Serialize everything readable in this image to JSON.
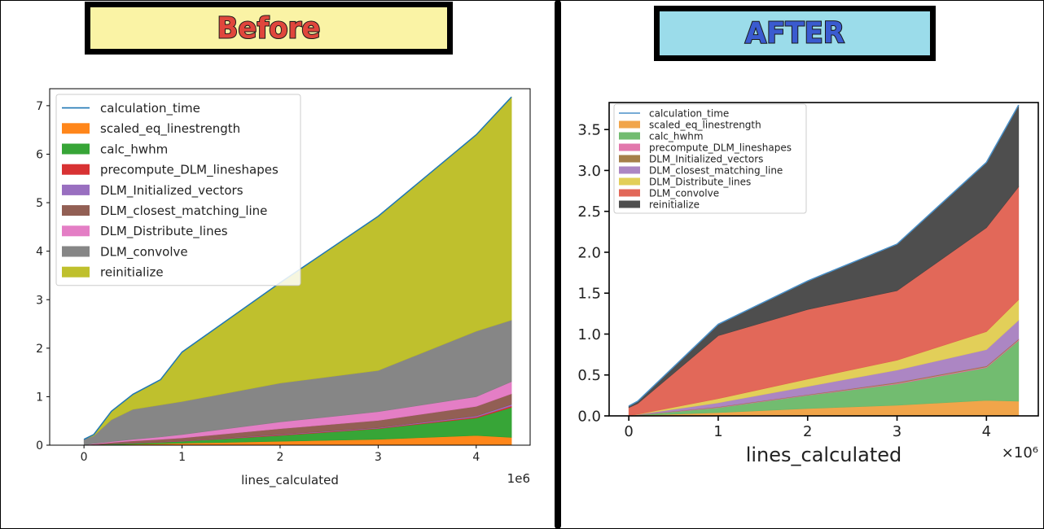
{
  "banners": {
    "before": "Before",
    "after": "AFTER"
  },
  "chart_data": [
    {
      "type": "area",
      "stacked": true,
      "panel": "before",
      "title": "",
      "xlabel": "lines_calculated",
      "x_offset_label": "1e6",
      "ylabel": "",
      "xlim": [
        -0.35,
        4.55
      ],
      "ylim": [
        0,
        7.35
      ],
      "xticks": [
        0,
        1,
        2,
        3,
        4
      ],
      "yticks": [
        0,
        1,
        2,
        3,
        4,
        5,
        6,
        7
      ],
      "grid": false,
      "legend": "top-left",
      "x": [
        0,
        0.1,
        0.28,
        0.5,
        0.78,
        1.0,
        2.0,
        3.0,
        4.0,
        4.36
      ],
      "line": {
        "name": "calculation_time",
        "color": "#1f77b4",
        "values": [
          0.12,
          0.22,
          0.7,
          1.05,
          1.35,
          1.92,
          3.35,
          4.72,
          6.4,
          7.18
        ]
      },
      "series": [
        {
          "name": "scaled_eq_linestrength",
          "color": "#ff7f0e",
          "values": [
            0.0,
            0.005,
            0.01,
            0.02,
            0.03,
            0.04,
            0.08,
            0.12,
            0.2,
            0.16
          ]
        },
        {
          "name": "calc_hwhm",
          "color": "#2ca02c",
          "values": [
            0.0,
            0.005,
            0.015,
            0.02,
            0.03,
            0.04,
            0.12,
            0.22,
            0.36,
            0.62
          ]
        },
        {
          "name": "precompute_DLM_lineshapes",
          "color": "#d62728",
          "values": [
            0.0,
            0.002,
            0.005,
            0.005,
            0.005,
            0.005,
            0.01,
            0.01,
            0.02,
            0.03
          ]
        },
        {
          "name": "DLM_Initialized_vectors",
          "color": "#9467bd",
          "values": [
            0.0,
            0.002,
            0.005,
            0.005,
            0.005,
            0.005,
            0.01,
            0.01,
            0.02,
            0.03
          ]
        },
        {
          "name": "DLM_closest_matching_line",
          "color": "#8c564b",
          "values": [
            0.0,
            0.01,
            0.02,
            0.04,
            0.05,
            0.06,
            0.12,
            0.15,
            0.2,
            0.22
          ]
        },
        {
          "name": "DLM_Distribute_lines",
          "color": "#e377c2",
          "values": [
            0.0,
            0.01,
            0.02,
            0.03,
            0.05,
            0.07,
            0.14,
            0.18,
            0.2,
            0.25
          ]
        },
        {
          "name": "DLM_convolve",
          "color": "#7f7f7f",
          "values": [
            0.12,
            0.16,
            0.45,
            0.62,
            0.66,
            0.68,
            0.8,
            0.85,
            1.35,
            1.27
          ]
        },
        {
          "name": "reinitialize",
          "color": "#bcbd22",
          "values": [
            0.0,
            0.028,
            0.18,
            0.31,
            0.5,
            1.02,
            2.07,
            3.18,
            4.05,
            4.6
          ]
        }
      ]
    },
    {
      "type": "area",
      "stacked": true,
      "panel": "after",
      "title": "",
      "xlabel": "lines_calculated",
      "x_offset_label": "×10⁶",
      "ylabel": "",
      "xlim": [
        -0.22,
        4.58
      ],
      "ylim": [
        0,
        3.83
      ],
      "xticks": [
        0,
        1,
        2,
        3,
        4
      ],
      "yticks": [
        0.0,
        0.5,
        1.0,
        1.5,
        2.0,
        2.5,
        3.0,
        3.5
      ],
      "ytick_labels": [
        "0.0",
        "0.5",
        "1.0",
        "1.5",
        "2.0",
        "2.5",
        "3.0",
        "3.5"
      ],
      "grid": false,
      "legend": "top-left",
      "x": [
        0,
        0.1,
        1.0,
        2.0,
        3.0,
        4.0,
        4.36
      ],
      "line": {
        "name": "calculation_time",
        "color": "#4a90c8",
        "values": [
          0.12,
          0.18,
          1.12,
          1.65,
          2.1,
          3.1,
          3.8
        ]
      },
      "series": [
        {
          "name": "scaled_eq_linestrength",
          "color": "#f0a040",
          "values": [
            0.0,
            0.005,
            0.04,
            0.09,
            0.13,
            0.19,
            0.18
          ]
        },
        {
          "name": "calc_hwhm",
          "color": "#6ab868",
          "values": [
            0.0,
            0.005,
            0.06,
            0.16,
            0.26,
            0.4,
            0.74
          ]
        },
        {
          "name": "precompute_DLM_lineshapes",
          "color": "#e070a8",
          "values": [
            0.0,
            0.002,
            0.005,
            0.005,
            0.01,
            0.01,
            0.01
          ]
        },
        {
          "name": "DLM_Initialized_vectors",
          "color": "#a07840",
          "values": [
            0.0,
            0.002,
            0.005,
            0.005,
            0.01,
            0.01,
            0.01
          ]
        },
        {
          "name": "DLM_closest_matching_line",
          "color": "#a880c0",
          "values": [
            0.0,
            0.003,
            0.05,
            0.1,
            0.15,
            0.2,
            0.23
          ]
        },
        {
          "name": "DLM_Distribute_lines",
          "color": "#e0cc50",
          "values": [
            0.0,
            0.003,
            0.05,
            0.09,
            0.12,
            0.22,
            0.25
          ]
        },
        {
          "name": "DLM_convolve",
          "color": "#e06050",
          "values": [
            0.1,
            0.13,
            0.77,
            0.85,
            0.85,
            1.27,
            1.38
          ]
        },
        {
          "name": "reinitialize",
          "color": "#454545",
          "values": [
            0.02,
            0.032,
            0.135,
            0.35,
            0.57,
            0.8,
            0.99
          ]
        }
      ]
    }
  ]
}
